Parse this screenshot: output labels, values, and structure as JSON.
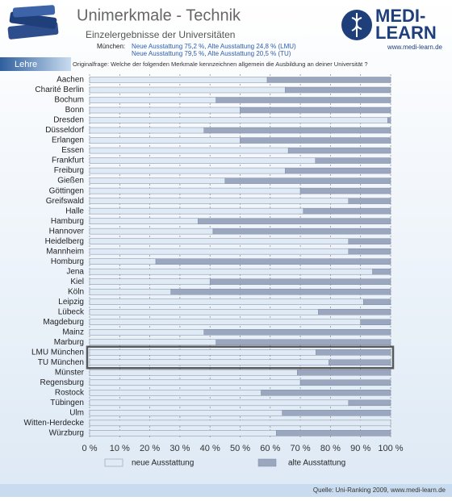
{
  "header": {
    "section": "Lehre",
    "logo_line1": "MEDI-",
    "logo_line2": "LEARN",
    "logo_url": "www.medi-learn.de"
  },
  "chart_data": {
    "type": "stacked-bar-horizontal",
    "title": "Unimerkmale - Technik",
    "subtitle": "Einzelergebnisse der Universitäten",
    "annotations": [
      "München:",
      "Neue Ausstattung 75,2 %, Alte Ausstattung 24,8 % (LMU)",
      "Neue Ausstattung 79,5 %, Alte Ausstattung 20,5 % (TU)"
    ],
    "question": "Originalfrage: Welche der folgenden Merkmale kennzeichnen allgemein die Ausbildung an deiner Universität ?",
    "source": "Quelle: Uni-Ranking 2009, www.medi-learn.de",
    "categories": [
      "Aachen",
      "Charité Berlin",
      "Bochum",
      "Bonn",
      "Dresden",
      "Düsseldorf",
      "Erlangen",
      "Essen",
      "Frankfurt",
      "Freiburg",
      "Gießen",
      "Göttingen",
      "Greifswald",
      "Halle",
      "Hamburg",
      "Hannover",
      "Heidelberg",
      "Mannheim",
      "Homburg",
      "Jena",
      "Kiel",
      "Köln",
      "Leipzig",
      "Lübeck",
      "Magdeburg",
      "Mainz",
      "Marburg",
      "LMU München",
      "TU München",
      "Münster",
      "Regensburg",
      "Rostock",
      "Tübingen",
      "Ulm",
      "Witten-Herdecke",
      "Würzburg"
    ],
    "series": [
      {
        "name": "neue Ausstattung",
        "color": "#dfeaf5",
        "values": [
          59,
          65,
          42,
          50,
          99,
          38,
          50,
          66,
          75,
          65,
          45,
          70,
          86,
          71,
          36,
          41,
          86,
          86,
          22,
          94,
          40,
          27,
          91,
          76,
          90,
          38,
          42,
          75.2,
          79.5,
          69,
          70,
          57,
          86,
          64,
          100,
          62
        ]
      },
      {
        "name": "alte Ausstattung",
        "color": "#9ba7be",
        "values": [
          41,
          35,
          58,
          50,
          1,
          62,
          50,
          34,
          25,
          35,
          55,
          30,
          14,
          29,
          64,
          59,
          14,
          14,
          78,
          6,
          60,
          73,
          9,
          24,
          10,
          62,
          58,
          24.8,
          20.5,
          31,
          30,
          43,
          14,
          36,
          0,
          38
        ]
      }
    ],
    "xlim": [
      0,
      100
    ],
    "xticks": [
      {
        "value": 0,
        "label": "0 %"
      },
      {
        "value": 10,
        "label": "10 %"
      },
      {
        "value": 20,
        "label": "20 %"
      },
      {
        "value": 30,
        "label": "30 %"
      },
      {
        "value": 40,
        "label": "40 %"
      },
      {
        "value": 50,
        "label": "50 %"
      },
      {
        "value": 60,
        "label": "60 %"
      },
      {
        "value": 70,
        "label": "70 %"
      },
      {
        "value": 80,
        "label": "80 %"
      },
      {
        "value": 90,
        "label": "90 %"
      },
      {
        "value": 100,
        "label": "100 %"
      }
    ],
    "grid": true,
    "highlight": [
      27,
      28
    ]
  }
}
